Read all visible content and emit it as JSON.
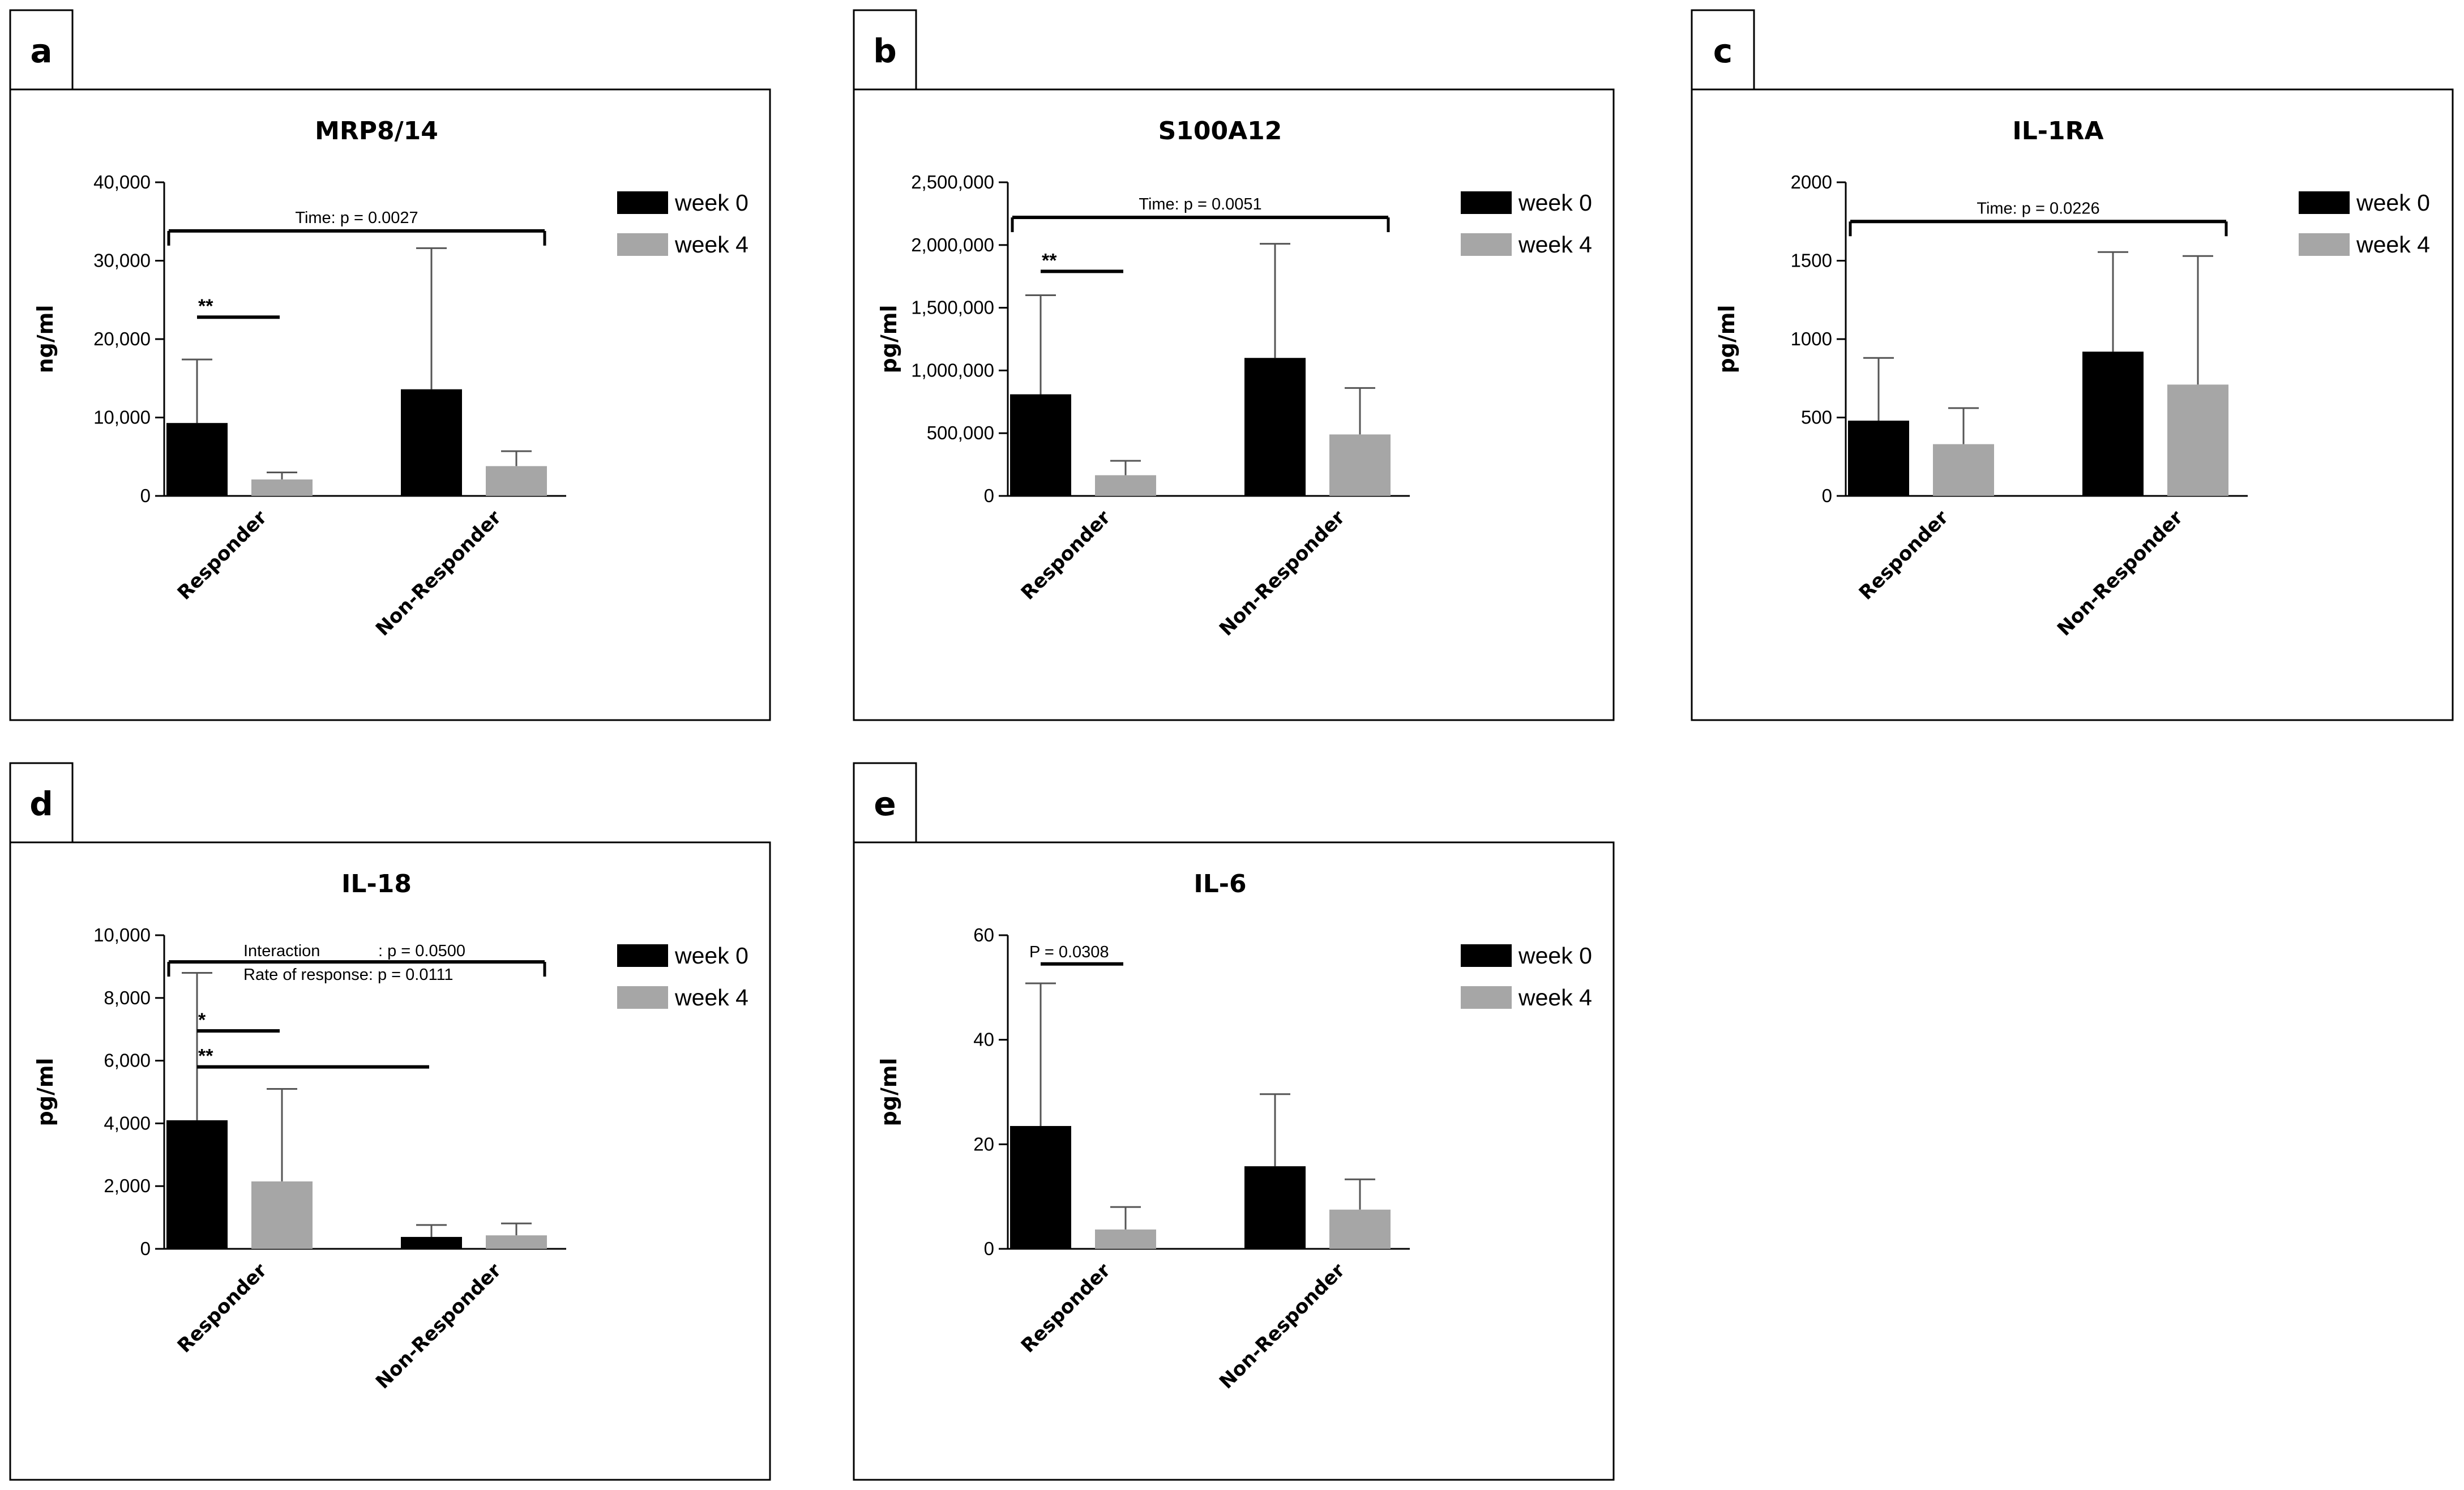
{
  "legend": {
    "week0": "week 0",
    "week4": "week 4"
  },
  "colors": {
    "week0": "#000000",
    "week4": "#a6a6a6",
    "axis": "#000000",
    "frame": "#000000"
  },
  "chart_data": [
    {
      "panel": "a",
      "type": "bar",
      "title": "MRP8/14",
      "ylabel": "ng/ml",
      "ylim": [
        0,
        40000
      ],
      "yticks": [
        "0",
        "10,000",
        "20,000",
        "30,000",
        "40,000"
      ],
      "ytick_values": [
        0,
        10000,
        20000,
        30000,
        40000
      ],
      "categories": [
        "Responder",
        "Non-Responder"
      ],
      "series": [
        {
          "name": "week 0",
          "values": [
            9300,
            13600
          ],
          "errors": [
            8100,
            18000
          ]
        },
        {
          "name": "week 4",
          "values": [
            2100,
            3800
          ],
          "errors": [
            900,
            1900
          ]
        }
      ],
      "annotations": [
        {
          "label": "Time: ",
          "pvalue": "p = 0.0027",
          "from": [
            0,
            0
          ],
          "to": [
            1,
            1
          ],
          "y": 33800,
          "ticks": "down"
        },
        {
          "label": "**",
          "from": [
            0,
            0
          ],
          "to": [
            0,
            1
          ],
          "y": 22800,
          "ticks": "none"
        }
      ]
    },
    {
      "panel": "b",
      "type": "bar",
      "title": "S100A12",
      "ylabel": "pg/ml",
      "ylim": [
        0,
        2500000
      ],
      "yticks": [
        "0",
        "500,000",
        "1,000,000",
        "1,500,000",
        "2,000,000",
        "2,500,000"
      ],
      "ytick_values": [
        0,
        500000,
        1000000,
        1500000,
        2000000,
        2500000
      ],
      "categories": [
        "Responder",
        "Non-Responder"
      ],
      "series": [
        {
          "name": "week 0",
          "values": [
            810000,
            1100000
          ],
          "errors": [
            790000,
            910000
          ]
        },
        {
          "name": "week 4",
          "values": [
            165000,
            490000
          ],
          "errors": [
            115000,
            370000
          ]
        }
      ],
      "annotations": [
        {
          "label": "Time: ",
          "pvalue": "p = 0.0051",
          "from": [
            0,
            0
          ],
          "to": [
            1,
            1
          ],
          "y": 2220000,
          "ticks": "down"
        },
        {
          "label": "**",
          "from": [
            0,
            0
          ],
          "to": [
            0,
            1
          ],
          "y": 1790000,
          "ticks": "none"
        }
      ]
    },
    {
      "panel": "c",
      "type": "bar",
      "title": "IL-1RA",
      "ylabel": "pg/ml",
      "ylim": [
        0,
        2000
      ],
      "yticks": [
        "0",
        "500",
        "1000",
        "1500",
        "2000"
      ],
      "ytick_values": [
        0,
        500,
        1000,
        1500,
        2000
      ],
      "categories": [
        "Responder",
        "Non-Responder"
      ],
      "series": [
        {
          "name": "week 0",
          "values": [
            480,
            920
          ],
          "errors": [
            400,
            635
          ]
        },
        {
          "name": "week 4",
          "values": [
            330,
            710
          ],
          "errors": [
            230,
            820
          ]
        }
      ],
      "annotations": [
        {
          "label": "Time: ",
          "pvalue": "p = 0.0226",
          "from": [
            0,
            0
          ],
          "to": [
            1,
            1
          ],
          "y": 1750,
          "ticks": "down"
        }
      ]
    },
    {
      "panel": "d",
      "type": "bar",
      "title": "IL-18",
      "ylabel": "pg/ml",
      "ylim": [
        0,
        10000
      ],
      "yticks": [
        "0",
        "2,000",
        "4,000",
        "6,000",
        "8,000",
        "10,000"
      ],
      "ytick_values": [
        0,
        2000,
        4000,
        6000,
        8000,
        10000
      ],
      "categories": [
        "Responder",
        "Non-Responder"
      ],
      "series": [
        {
          "name": "week 0",
          "values": [
            4100,
            380
          ],
          "errors": [
            4700,
            380
          ]
        },
        {
          "name": "week 4",
          "values": [
            2150,
            430
          ],
          "errors": [
            2950,
            380
          ]
        }
      ],
      "annotations": [
        {
          "label": "Interaction",
          "pvalue": ": p = 0.0500",
          "label2": "Rate of response: ",
          "pvalue2": "p = 0.0111",
          "from": [
            0,
            0
          ],
          "to": [
            1,
            1
          ],
          "y": 9150,
          "ticks": "down"
        },
        {
          "label": "*",
          "from": [
            0,
            0
          ],
          "to": [
            0,
            1
          ],
          "y": 6950,
          "ticks": "none"
        },
        {
          "label": "**",
          "from": [
            0,
            0
          ],
          "to": [
            1,
            0
          ],
          "y": 5800,
          "ticks": "none"
        }
      ]
    },
    {
      "panel": "e",
      "type": "bar",
      "title": "IL-6",
      "ylabel": "pg/ml",
      "ylim": [
        0,
        60
      ],
      "yticks": [
        "0",
        "20",
        "40",
        "60"
      ],
      "ytick_values": [
        0,
        20,
        40,
        60
      ],
      "categories": [
        "Responder",
        "Non-Responder"
      ],
      "series": [
        {
          "name": "week 0",
          "values": [
            23.5,
            15.8
          ],
          "errors": [
            27.3,
            13.8
          ]
        },
        {
          "name": "week 4",
          "values": [
            3.7,
            7.5
          ],
          "errors": [
            4.3,
            5.8
          ]
        }
      ],
      "annotations": [
        {
          "label": "P = 0.0308",
          "from": [
            0,
            0
          ],
          "to": [
            0,
            1
          ],
          "y": 54.5,
          "ticks": "none"
        }
      ]
    }
  ]
}
